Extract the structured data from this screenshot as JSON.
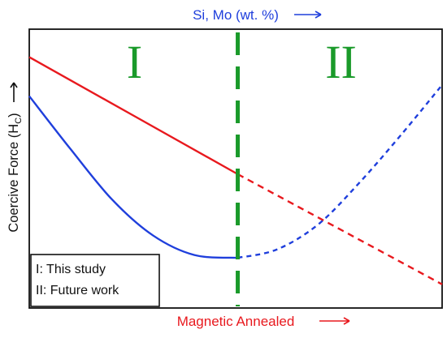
{
  "chart_data": {
    "type": "line",
    "title": "",
    "xlabel": "Magnetic Annealed",
    "ylabel": "Coercive Force (H",
    "ylabel_sub": "C",
    "top_xlabel": "Si, Mo (wt. %)",
    "xlim": [
      0,
      1
    ],
    "ylim": [
      0,
      1
    ],
    "grid": false,
    "legend_placement": "bottom-left",
    "boundary_x": 0.505,
    "regions": [
      {
        "label": "I",
        "x_center": 0.255
      },
      {
        "label": "II",
        "x_center": 0.755
      }
    ],
    "legend_lines": [
      "I: This study",
      "II: Future work"
    ],
    "series": [
      {
        "color": "#e8191e",
        "x": [
          0,
          0.505,
          1
        ],
        "y": [
          0.9,
          0.48,
          0.085
        ],
        "style_by_region": [
          "solid",
          "dashed"
        ]
      },
      {
        "color": "#1f3fdc",
        "x": [
          0,
          0.1,
          0.2,
          0.3,
          0.4,
          0.505,
          0.6,
          0.7,
          0.8,
          0.9,
          1
        ],
        "y": [
          0.76,
          0.57,
          0.39,
          0.26,
          0.19,
          0.18,
          0.21,
          0.3,
          0.45,
          0.62,
          0.8
        ],
        "style_by_region": [
          "solid",
          "dotted"
        ]
      }
    ],
    "colors": {
      "boundary": "#1a9a2a",
      "region_label": "#1a9a2a",
      "xlabel": "#e8191e",
      "top_xlabel": "#1f3fdc",
      "axis": "#111111"
    }
  }
}
